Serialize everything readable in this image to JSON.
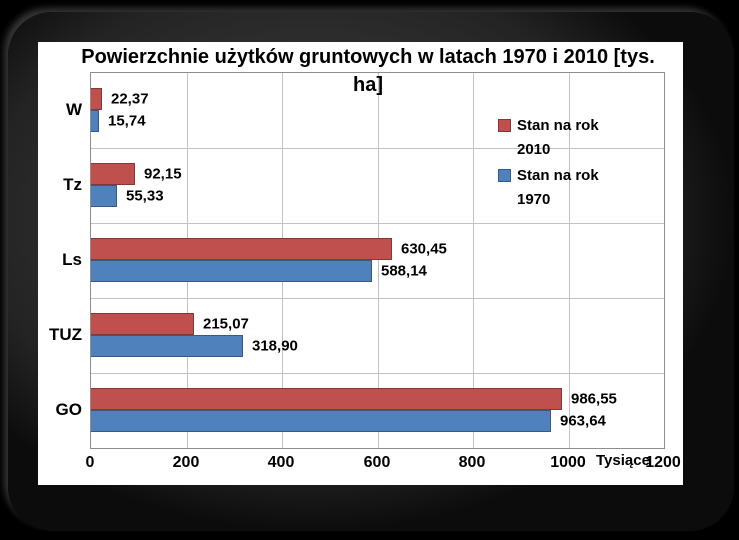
{
  "ui_colors": {
    "background": "#000000",
    "slide_frame": "#2e2e2e",
    "card_background": "#ffffff",
    "grid_line": "#c2c2c2",
    "plot_border": "#8e8e8e",
    "text": "#000000"
  },
  "chart_data": {
    "type": "bar",
    "orientation": "horizontal",
    "title": "Powierzchnie użytków gruntowych w latach 1970 i 2010 [tys. ha]",
    "categories": [
      "W",
      "Tz",
      "Ls",
      "TUZ",
      "GO"
    ],
    "series": [
      {
        "name": "Stan na rok 2010",
        "color": "#C0504D",
        "values": [
          22.37,
          92.15,
          630.45,
          215.07,
          986.55
        ]
      },
      {
        "name": "Stan na rok 1970",
        "color": "#4F81BD",
        "values": [
          15.74,
          55.33,
          588.14,
          318.9,
          963.64
        ]
      }
    ],
    "value_labels": [
      [
        "22,37",
        "92,15",
        "630,45",
        "215,07",
        "986,55"
      ],
      [
        "15,74",
        "55,33",
        "588,14",
        "318,90",
        "963,64"
      ]
    ],
    "x_ticks": [
      "0",
      "200",
      "400",
      "600",
      "800",
      "1000",
      "1200"
    ],
    "xlim": [
      0,
      1200
    ],
    "axis_unit_label": "Tysiące",
    "grid": true,
    "legend_position": "inside-right",
    "legend_entries": [
      "Stan na rok 2010",
      "Stan na rok 1970"
    ]
  }
}
